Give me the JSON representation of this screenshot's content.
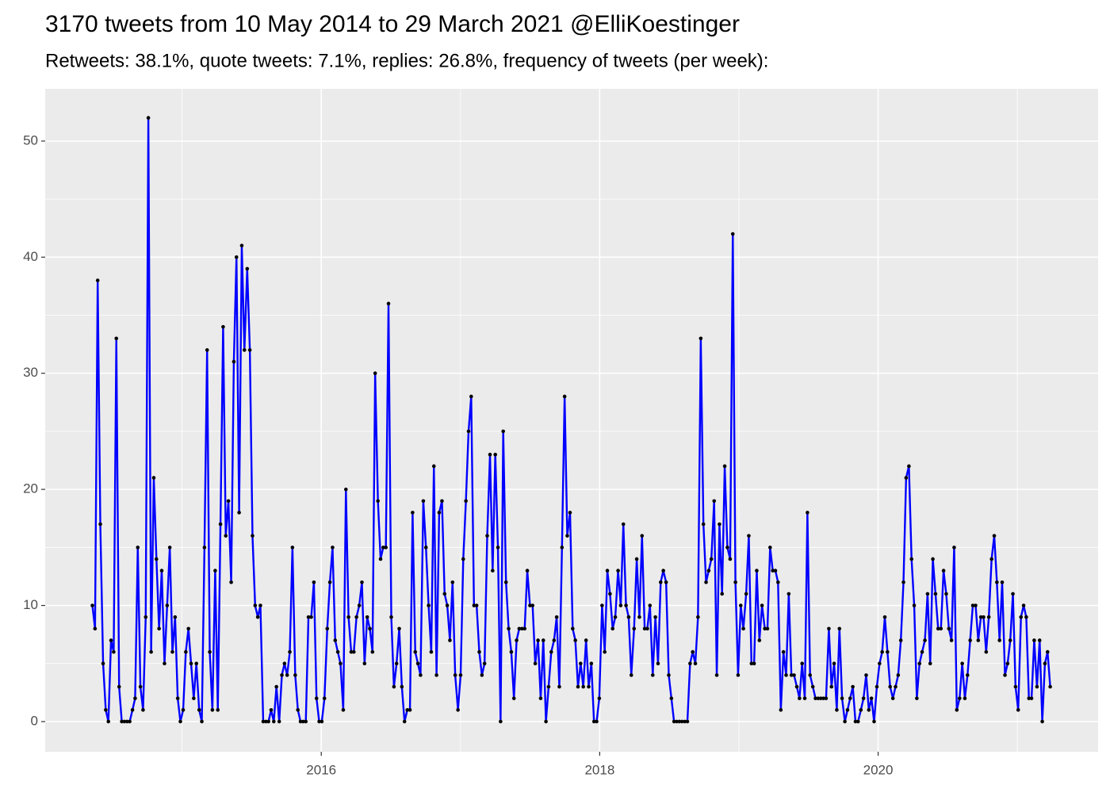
{
  "chart_data": {
    "type": "line",
    "title": "3170 tweets from 10 May 2014 to 29 March 2021 @ElliKoestinger",
    "subtitle": "Retweets: 38.1%, quote tweets: 7.1%, replies: 26.8%, frequency of tweets (per week):",
    "color": "#0000ff",
    "marker_color": "#000000",
    "grid": true,
    "background": "#ebebeb",
    "xlim": [
      2014.017,
      2021.58
    ],
    "xticks": [
      2016,
      2018,
      2020
    ],
    "xminorticks": [
      2015,
      2017,
      2019,
      2021
    ],
    "ylim": [
      -2.6,
      54.5
    ],
    "yticks": [
      0,
      10,
      20,
      30,
      40,
      50
    ],
    "yminorticks": [
      5,
      15,
      25,
      35,
      45
    ],
    "x": [
      2014.356,
      2014.375,
      2014.394,
      2014.413,
      2014.433,
      2014.452,
      2014.471,
      2014.49,
      2014.509,
      2014.528,
      2014.548,
      2014.567,
      2014.586,
      2014.605,
      2014.624,
      2014.644,
      2014.663,
      2014.682,
      2014.701,
      2014.72,
      2014.739,
      2014.758,
      2014.778,
      2014.797,
      2014.816,
      2014.835,
      2014.854,
      2014.874,
      2014.893,
      2014.912,
      2014.931,
      2014.95,
      2014.969,
      2014.988,
      2015.008,
      2015.027,
      2015.046,
      2015.065,
      2015.084,
      2015.103,
      2015.123,
      2015.142,
      2015.161,
      2015.18,
      2015.199,
      2015.218,
      2015.238,
      2015.257,
      2015.276,
      2015.295,
      2015.314,
      2015.333,
      2015.353,
      2015.372,
      2015.391,
      2015.41,
      2015.429,
      2015.448,
      2015.468,
      2015.487,
      2015.506,
      2015.525,
      2015.544,
      2015.563,
      2015.583,
      2015.602,
      2015.621,
      2015.64,
      2015.659,
      2015.678,
      2015.698,
      2015.717,
      2015.736,
      2015.755,
      2015.774,
      2015.793,
      2015.813,
      2015.832,
      2015.851,
      2015.87,
      2015.889,
      2015.908,
      2015.928,
      2015.947,
      2015.966,
      2015.985,
      2016.004,
      2016.023,
      2016.043,
      2016.062,
      2016.081,
      2016.1,
      2016.119,
      2016.138,
      2016.158,
      2016.177,
      2016.196,
      2016.215,
      2016.234,
      2016.253,
      2016.273,
      2016.292,
      2016.311,
      2016.33,
      2016.349,
      2016.368,
      2016.387,
      2016.407,
      2016.426,
      2016.445,
      2016.464,
      2016.483,
      2016.503,
      2016.522,
      2016.541,
      2016.56,
      2016.579,
      2016.598,
      2016.618,
      2016.637,
      2016.656,
      2016.675,
      2016.694,
      2016.713,
      2016.733,
      2016.752,
      2016.771,
      2016.79,
      2016.809,
      2016.828,
      2016.847,
      2016.867,
      2016.886,
      2016.905,
      2016.924,
      2016.943,
      2016.962,
      2016.982,
      2017.001,
      2017.02,
      2017.039,
      2017.058,
      2017.077,
      2017.097,
      2017.116,
      2017.135,
      2017.154,
      2017.173,
      2017.192,
      2017.212,
      2017.231,
      2017.25,
      2017.269,
      2017.288,
      2017.307,
      2017.327,
      2017.346,
      2017.365,
      2017.384,
      2017.403,
      2017.422,
      2017.442,
      2017.461,
      2017.48,
      2017.499,
      2017.518,
      2017.537,
      2017.557,
      2017.576,
      2017.595,
      2017.614,
      2017.633,
      2017.652,
      2017.672,
      2017.691,
      2017.71,
      2017.729,
      2017.748,
      2017.767,
      2017.787,
      2017.806,
      2017.825,
      2017.844,
      2017.863,
      2017.882,
      2017.902,
      2017.921,
      2017.94,
      2017.959,
      2017.978,
      2017.997,
      2018.017,
      2018.036,
      2018.055,
      2018.074,
      2018.093,
      2018.112,
      2018.132,
      2018.151,
      2018.17,
      2018.189,
      2018.208,
      2018.227,
      2018.247,
      2018.266,
      2018.285,
      2018.304,
      2018.323,
      2018.342,
      2018.361,
      2018.381,
      2018.4,
      2018.419,
      2018.438,
      2018.457,
      2018.477,
      2018.496,
      2018.515,
      2018.534,
      2018.553,
      2018.572,
      2018.591,
      2018.611,
      2018.63,
      2018.649,
      2018.668,
      2018.687,
      2018.706,
      2018.726,
      2018.745,
      2018.764,
      2018.783,
      2018.802,
      2018.822,
      2018.841,
      2018.86,
      2018.879,
      2018.898,
      2018.917,
      2018.937,
      2018.956,
      2018.975,
      2018.994,
      2019.013,
      2019.032,
      2019.052,
      2019.071,
      2019.09,
      2019.109,
      2019.128,
      2019.147,
      2019.166,
      2019.186,
      2019.205,
      2019.224,
      2019.243,
      2019.262,
      2019.281,
      2019.301,
      2019.32,
      2019.339,
      2019.358,
      2019.377,
      2019.396,
      2019.416,
      2019.435,
      2019.454,
      2019.473,
      2019.492,
      2019.511,
      2019.531,
      2019.55,
      2019.569,
      2019.588,
      2019.607,
      2019.626,
      2019.646,
      2019.665,
      2019.684,
      2019.703,
      2019.722,
      2019.741,
      2019.761,
      2019.78,
      2019.799,
      2019.818,
      2019.837,
      2019.856,
      2019.876,
      2019.895,
      2019.914,
      2019.933,
      2019.952,
      2019.971,
      2019.991,
      2020.01,
      2020.029,
      2020.048,
      2020.067,
      2020.086,
      2020.106,
      2020.125,
      2020.144,
      2020.163,
      2020.182,
      2020.201,
      2020.221,
      2020.24,
      2020.259,
      2020.278,
      2020.297,
      2020.316,
      2020.336,
      2020.355,
      2020.374,
      2020.393,
      2020.412,
      2020.431,
      2020.451,
      2020.47,
      2020.489,
      2020.508,
      2020.527,
      2020.546,
      2020.565,
      2020.585,
      2020.604,
      2020.623,
      2020.642,
      2020.661,
      2020.68,
      2020.7,
      2020.719,
      2020.738,
      2020.757,
      2020.776,
      2020.795,
      2020.815,
      2020.834,
      2020.853,
      2020.872,
      2020.891,
      2020.911,
      2020.93,
      2020.949,
      2020.968,
      2020.987,
      2021.006,
      2021.026,
      2021.045,
      2021.064,
      2021.083,
      2021.102,
      2021.121,
      2021.141,
      2021.16,
      2021.179,
      2021.198,
      2021.217,
      2021.236
    ],
    "values": [
      10,
      8,
      38,
      17,
      5,
      1,
      0,
      7,
      6,
      33,
      3,
      0,
      0,
      0,
      0,
      1,
      2,
      15,
      3,
      1,
      9,
      52,
      6,
      21,
      14,
      8,
      13,
      5,
      10,
      15,
      6,
      9,
      2,
      0,
      1,
      6,
      8,
      5,
      2,
      5,
      1,
      0,
      15,
      32,
      6,
      1,
      13,
      1,
      17,
      34,
      16,
      19,
      12,
      31,
      40,
      18,
      41,
      32,
      39,
      32,
      16,
      10,
      9,
      10,
      0,
      0,
      0,
      1,
      0,
      3,
      0,
      4,
      5,
      4,
      6,
      15,
      4,
      1,
      0,
      0,
      0,
      9,
      9,
      12,
      2,
      0,
      0,
      2,
      8,
      12,
      15,
      7,
      6,
      5,
      1,
      20,
      9,
      6,
      6,
      9,
      10,
      12,
      5,
      9,
      8,
      6,
      30,
      19,
      14,
      15,
      15,
      36,
      9,
      3,
      5,
      8,
      3,
      0,
      1,
      1,
      18,
      6,
      5,
      4,
      19,
      15,
      10,
      6,
      22,
      4,
      18,
      19,
      11,
      10,
      7,
      12,
      4,
      1,
      4,
      14,
      19,
      25,
      28,
      10,
      10,
      6,
      4,
      5,
      16,
      23,
      13,
      23,
      15,
      0,
      25,
      12,
      8,
      6,
      2,
      7,
      8,
      8,
      8,
      13,
      10,
      10,
      5,
      7,
      2,
      7,
      0,
      3,
      6,
      7,
      9,
      3,
      15,
      28,
      16,
      18,
      8,
      7,
      3,
      5,
      3,
      7,
      3,
      5,
      0,
      0,
      2,
      10,
      6,
      13,
      11,
      8,
      9,
      13,
      10,
      17,
      10,
      9,
      4,
      8,
      14,
      9,
      16,
      8,
      8,
      10,
      4,
      9,
      5,
      12,
      13,
      12,
      4,
      2,
      0,
      0,
      0,
      0,
      0,
      0,
      5,
      6,
      5,
      9,
      33,
      17,
      12,
      13,
      14,
      19,
      4,
      17,
      11,
      22,
      15,
      14,
      42,
      12,
      4,
      10,
      8,
      11,
      16,
      5,
      5,
      13,
      7,
      10,
      8,
      8,
      15,
      13,
      13,
      12,
      1,
      6,
      4,
      11,
      4,
      4,
      3,
      2,
      5,
      2,
      18,
      4,
      3,
      2,
      2,
      2,
      2,
      2,
      8,
      3,
      5,
      1,
      8,
      2,
      0,
      1,
      2,
      3,
      0,
      0,
      1,
      2,
      4,
      1,
      2,
      0,
      3,
      5,
      6,
      9,
      6,
      3,
      2,
      3,
      4,
      7,
      12,
      21,
      22,
      14,
      10,
      2,
      5,
      6,
      7,
      11,
      5,
      14,
      11,
      8,
      8,
      13,
      11,
      8,
      7,
      15,
      1,
      2,
      5,
      2,
      4,
      7,
      10,
      10,
      7,
      9,
      9,
      6,
      9,
      14,
      16,
      12,
      7,
      12,
      4,
      5,
      7,
      11,
      3,
      1,
      9,
      10,
      9,
      2,
      2,
      7,
      3,
      7,
      0,
      5,
      6,
      3
    ]
  }
}
